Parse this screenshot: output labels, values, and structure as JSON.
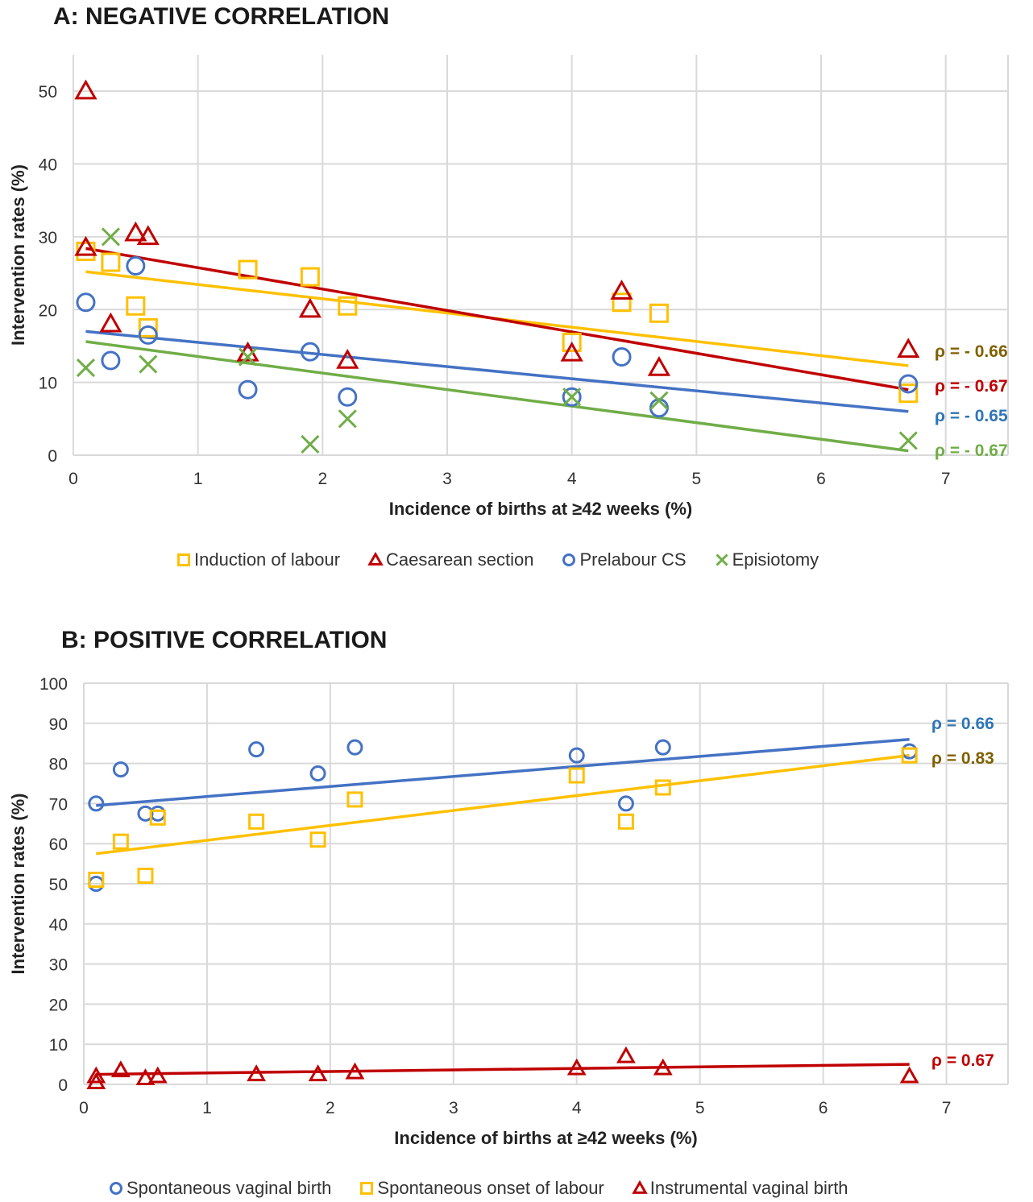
{
  "charts": {
    "A": {
      "title": "A: NEGATIVE CORRELATION",
      "chart_data": {
        "type": "scatter",
        "xlabel": "Incidence of births at ≥42 weeks (%)",
        "ylabel": "Intervention rates (%)",
        "xlim": [
          0,
          7.5
        ],
        "ylim": [
          0,
          55
        ],
        "xticks": [
          0,
          1,
          2,
          3,
          4,
          5,
          6,
          7
        ],
        "yticks": [
          0,
          10,
          20,
          30,
          40,
          50
        ],
        "grid": true,
        "legend_position": "bottom",
        "series": [
          {
            "name": "Induction of labour",
            "color": "#FFC000",
            "marker": "square",
            "points": [
              [
                0.1,
                28
              ],
              [
                0.3,
                26.5
              ],
              [
                0.5,
                20.5
              ],
              [
                0.6,
                17.5
              ],
              [
                1.4,
                25.5
              ],
              [
                1.9,
                24.5
              ],
              [
                2.2,
                20.5
              ],
              [
                4.0,
                15.5
              ],
              [
                4.4,
                21
              ],
              [
                4.7,
                19.5
              ],
              [
                6.7,
                8.5
              ]
            ],
            "trend": [
              [
                0.1,
                25.2
              ],
              [
                6.7,
                12.3
              ]
            ],
            "rho": "ρ = - 0.66",
            "rho_color": "#7F6000"
          },
          {
            "name": "Caesarean section",
            "color": "#C00000",
            "marker": "triangle",
            "points": [
              [
                0.1,
                50
              ],
              [
                0.1,
                28.5
              ],
              [
                0.3,
                18
              ],
              [
                0.5,
                30.5
              ],
              [
                0.6,
                30
              ],
              [
                1.4,
                14
              ],
              [
                1.9,
                20
              ],
              [
                2.2,
                13
              ],
              [
                4.0,
                14
              ],
              [
                4.4,
                22.5
              ],
              [
                4.7,
                12
              ],
              [
                6.7,
                14.5
              ]
            ],
            "trend": [
              [
                0.1,
                28.4
              ],
              [
                6.7,
                9.0
              ]
            ],
            "rho": "ρ = - 0.67",
            "rho_color": "#C00000"
          },
          {
            "name": "Prelabour CS",
            "color": "#4472C4",
            "marker": "circle",
            "points": [
              [
                0.1,
                21
              ],
              [
                0.3,
                13
              ],
              [
                0.5,
                26
              ],
              [
                0.6,
                16.5
              ],
              [
                1.4,
                9
              ],
              [
                1.9,
                14.2
              ],
              [
                2.2,
                8
              ],
              [
                4.0,
                8
              ],
              [
                4.4,
                13.5
              ],
              [
                4.7,
                6.5
              ],
              [
                6.7,
                9.8
              ]
            ],
            "trend": [
              [
                0.1,
                17
              ],
              [
                6.7,
                6.0
              ]
            ],
            "rho": "ρ = - 0.65",
            "rho_color": "#2E75B6"
          },
          {
            "name": "Episiotomy",
            "color": "#70AD47",
            "marker": "cross",
            "points": [
              [
                0.1,
                12
              ],
              [
                0.3,
                30
              ],
              [
                0.6,
                12.5
              ],
              [
                1.4,
                13.5
              ],
              [
                1.9,
                1.5
              ],
              [
                2.2,
                5
              ],
              [
                4.0,
                8
              ],
              [
                4.7,
                7.5
              ],
              [
                6.7,
                2
              ]
            ],
            "trend": [
              [
                0.1,
                15.6
              ],
              [
                6.7,
                0.6
              ]
            ],
            "rho": "ρ = - 0.67",
            "rho_color": "#70AD47"
          }
        ]
      }
    },
    "B": {
      "title": "B: POSITIVE CORRELATION",
      "chart_data": {
        "type": "scatter",
        "xlabel": "Incidence of births at ≥42 weeks (%)",
        "ylabel": "Intervention rates (%)",
        "xlim": [
          0,
          7.5
        ],
        "ylim": [
          0,
          100
        ],
        "xticks": [
          0,
          1,
          2,
          3,
          4,
          5,
          6,
          7
        ],
        "yticks": [
          0,
          10,
          20,
          30,
          40,
          50,
          60,
          70,
          80,
          90,
          100
        ],
        "grid": true,
        "legend_position": "bottom",
        "series": [
          {
            "name": "Spontaneous vaginal birth",
            "color": "#4472C4",
            "marker": "circle",
            "points": [
              [
                0.1,
                70
              ],
              [
                0.1,
                50
              ],
              [
                0.3,
                78.5
              ],
              [
                0.5,
                67.5
              ],
              [
                0.6,
                67.5
              ],
              [
                1.4,
                83.5
              ],
              [
                1.9,
                77.5
              ],
              [
                2.2,
                84
              ],
              [
                4.0,
                82
              ],
              [
                4.4,
                70
              ],
              [
                4.7,
                84
              ],
              [
                6.7,
                83
              ]
            ],
            "trend": [
              [
                0.1,
                69.5
              ],
              [
                6.7,
                86
              ]
            ],
            "rho": "ρ = 0.66",
            "rho_color": "#2E75B6"
          },
          {
            "name": "Spontaneous onset of labour",
            "color": "#FFC000",
            "marker": "square",
            "points": [
              [
                0.1,
                51
              ],
              [
                0.3,
                60.5
              ],
              [
                0.5,
                52
              ],
              [
                0.6,
                66.5
              ],
              [
                1.4,
                65.5
              ],
              [
                1.9,
                61
              ],
              [
                2.2,
                71
              ],
              [
                4.0,
                77
              ],
              [
                4.4,
                65.5
              ],
              [
                4.7,
                74
              ],
              [
                6.7,
                82
              ]
            ],
            "trend": [
              [
                0.1,
                57.5
              ],
              [
                6.7,
                82
              ]
            ],
            "rho": "ρ = 0.83",
            "rho_color": "#7F6000"
          },
          {
            "name": "Instrumental vaginal birth",
            "color": "#C00000",
            "marker": "triangle",
            "points": [
              [
                0.1,
                2
              ],
              [
                0.1,
                0.5
              ],
              [
                0.3,
                3.5
              ],
              [
                0.5,
                1.5
              ],
              [
                0.6,
                2
              ],
              [
                1.4,
                2.5
              ],
              [
                1.9,
                2.5
              ],
              [
                2.2,
                3
              ],
              [
                4.0,
                4
              ],
              [
                4.4,
                7
              ],
              [
                4.7,
                4
              ],
              [
                6.7,
                2
              ]
            ],
            "trend": [
              [
                0.1,
                2.5
              ],
              [
                6.7,
                5
              ]
            ],
            "rho": "ρ = 0.67",
            "rho_color": "#C00000"
          }
        ]
      }
    }
  }
}
